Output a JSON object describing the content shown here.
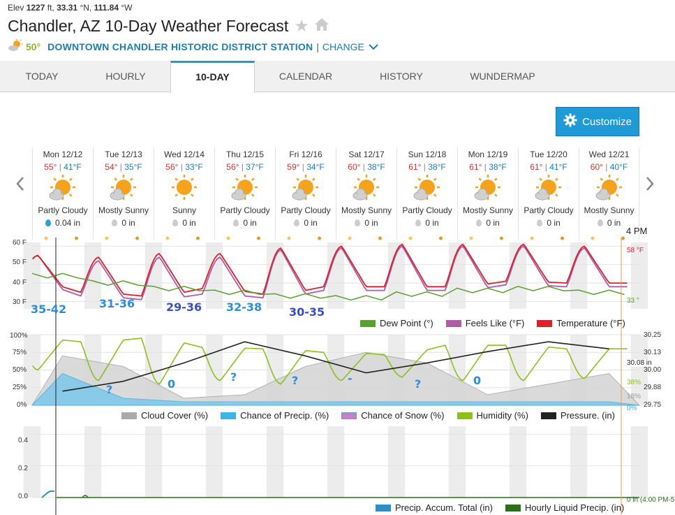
{
  "header": {
    "elev_label": "Elev",
    "elev_value": "1227",
    "elev_unit": "ft,",
    "lat_value": "33.31",
    "lat_unit": "°N,",
    "lon_value": "111.84",
    "lon_unit": "°W",
    "title": "Chandler, AZ 10-Day Weather Forecast",
    "station_temp": "50°",
    "station_name": "DOWNTOWN CHANDLER HISTORIC DISTRICT STATION",
    "separator": "|",
    "change_label": "CHANGE"
  },
  "tabs": [
    {
      "label": "TODAY"
    },
    {
      "label": "HOURLY"
    },
    {
      "label": "10-DAY"
    },
    {
      "label": "CALENDAR"
    },
    {
      "label": "HISTORY"
    },
    {
      "label": "WUNDERMAP"
    }
  ],
  "customize_label": "Customize",
  "days": [
    {
      "date": "Mon 12/12",
      "hi": "55°",
      "lo": "41°F",
      "cond": "Partly Cloudy",
      "precip": "0.04 in",
      "icon": "partly-cloudy-icon"
    },
    {
      "date": "Tue 12/13",
      "hi": "54°",
      "lo": "35°F",
      "cond": "Mostly Sunny",
      "precip": "0 in",
      "icon": "mostly-sunny-icon"
    },
    {
      "date": "Wed 12/14",
      "hi": "56°",
      "lo": "33°F",
      "cond": "Sunny",
      "precip": "0 in",
      "icon": "sunny-icon"
    },
    {
      "date": "Thu 12/15",
      "hi": "56°",
      "lo": "37°F",
      "cond": "Partly Cloudy",
      "precip": "0 in",
      "icon": "partly-cloudy-icon"
    },
    {
      "date": "Fri 12/16",
      "hi": "59°",
      "lo": "34°F",
      "cond": "Partly Cloudy",
      "precip": "0 in",
      "icon": "partly-cloudy-icon"
    },
    {
      "date": "Sat 12/17",
      "hi": "60°",
      "lo": "38°F",
      "cond": "Mostly Sunny",
      "precip": "0 in",
      "icon": "mostly-sunny-icon"
    },
    {
      "date": "Sun 12/18",
      "hi": "61°",
      "lo": "38°F",
      "cond": "Partly Cloudy",
      "precip": "0 in",
      "icon": "partly-cloudy-icon"
    },
    {
      "date": "Mon 12/19",
      "hi": "61°",
      "lo": "38°F",
      "cond": "Mostly Sunny",
      "precip": "0 in",
      "icon": "mostly-sunny-icon"
    },
    {
      "date": "Tue 12/20",
      "hi": "61°",
      "lo": "41°F",
      "cond": "Partly Cloudy",
      "precip": "0 in",
      "icon": "partly-cloudy-icon"
    },
    {
      "date": "Wed 12/21",
      "hi": "60°",
      "lo": "40°F",
      "cond": "Mostly Sunny",
      "precip": "0 in",
      "icon": "mostly-sunny-icon"
    }
  ],
  "current_time": "4 PM",
  "temp_chart": {
    "y_ticks": [
      "60 F",
      "50 F",
      "40 F",
      "30 F"
    ],
    "current_temp": "58 °F",
    "current_dew": "33 °",
    "legend": [
      "Dew Point (°)",
      "Feels Like (°F)",
      "Temperature (°F)"
    ],
    "colors": {
      "dew": "#5aa02c",
      "feels": "#b05aa8",
      "temp": "#d9222a"
    },
    "annotations": [
      "35-42",
      "31-36",
      "29-36",
      "32-38",
      "30-35"
    ]
  },
  "humidity_chart": {
    "y_ticks": [
      "100%",
      "75%",
      "50%",
      "25%",
      "0%"
    ],
    "right_ticks": [
      "30.25",
      "30.13",
      "30.00",
      "29.88",
      "29.75"
    ],
    "current_pressure": "30.08 in",
    "current_humidity": "38%",
    "current_cloud": "18%",
    "current_precip_chance": "0%",
    "legend": [
      "Cloud Cover (%)",
      "Chance of Precip. (%)",
      "Chance of Snow (%)",
      "Humidity (%)",
      "Pressure. (in)"
    ],
    "colors": {
      "cloud": "#c8c8c8",
      "precip": "#3cb4e6",
      "snow": "#c87fc8",
      "humidity": "#8bc11a",
      "pressure": "#222222"
    },
    "annotations": [
      "?",
      "0",
      "?",
      "?",
      "-",
      "?",
      "0"
    ]
  },
  "precip_chart": {
    "y_ticks": [
      "0.4",
      "0.2",
      "0.0"
    ],
    "current_value": "0 in (4:00 PM-5",
    "legend": [
      "Precip. Accum. Total (in)",
      "Hourly Liquid Precip. (in)"
    ],
    "colors": {
      "accum": "#2c8fc8",
      "hourly": "#2c6e1a"
    }
  },
  "chart_data": [
    {
      "type": "line",
      "x": [
        "Mon 12/12",
        "Tue 12/13",
        "Wed 12/14",
        "Thu 12/15",
        "Fri 12/16",
        "Sat 12/17",
        "Sun 12/18",
        "Mon 12/19",
        "Tue 12/20",
        "Wed 12/21"
      ],
      "ylim": [
        26,
        62
      ],
      "y_ticks": [
        60,
        50,
        40,
        30
      ],
      "series": [
        {
          "name": "Temperature (°F)",
          "highs": [
            55,
            54,
            56,
            56,
            59,
            60,
            61,
            61,
            61,
            60
          ],
          "lows": [
            41,
            35,
            33,
            37,
            34,
            38,
            38,
            38,
            41,
            40
          ]
        },
        {
          "name": "Feels Like (°F)",
          "highs": [
            55,
            52,
            54,
            54,
            58,
            59,
            60,
            60,
            60,
            59
          ],
          "lows": [
            40,
            33,
            31,
            34,
            32,
            36,
            36,
            36,
            39,
            38
          ]
        },
        {
          "name": "Dew Point (°)",
          "values": [
            44,
            40,
            37,
            35,
            33,
            32,
            34,
            36,
            37,
            35
          ]
        }
      ]
    },
    {
      "type": "line",
      "x": [
        "Mon 12/12",
        "Tue 12/13",
        "Wed 12/14",
        "Thu 12/15",
        "Fri 12/16",
        "Sat 12/17",
        "Sun 12/18",
        "Mon 12/19",
        "Tue 12/20",
        "Wed 12/21"
      ],
      "ylim": [
        0,
        100
      ],
      "series": [
        {
          "name": "Humidity (%)",
          "highs": [
            95,
            90,
            95,
            82,
            80,
            75,
            72,
            85,
            85,
            80
          ],
          "lows": [
            50,
            35,
            30,
            35,
            30,
            35,
            40,
            35,
            35,
            38
          ]
        },
        {
          "name": "Pressure. (in)",
          "values": [
            29.85,
            29.92,
            30.05,
            30.2,
            30.1,
            29.98,
            30.05,
            30.13,
            30.2,
            30.15
          ]
        },
        {
          "name": "Cloud Cover (%)",
          "values": [
            70,
            55,
            10,
            15,
            55,
            75,
            60,
            15,
            30,
            45
          ]
        },
        {
          "name": "Chance of Precip. (%)",
          "values": [
            45,
            10,
            5,
            5,
            5,
            5,
            5,
            5,
            5,
            5
          ]
        }
      ]
    },
    {
      "type": "line",
      "ylim": [
        0,
        0.45
      ],
      "y_ticks": [
        0.4,
        0.2,
        0.0
      ],
      "series": [
        {
          "name": "Precip. Accum. Total (in)",
          "values": [
            0.04,
            0.04,
            0.04,
            0.04,
            0.04,
            0.04,
            0.04,
            0.04,
            0.04,
            0.04
          ]
        },
        {
          "name": "Hourly Liquid Precip. (in)",
          "values": [
            0.01,
            0,
            0,
            0,
            0,
            0,
            0,
            0,
            0,
            0
          ]
        }
      ]
    }
  ]
}
